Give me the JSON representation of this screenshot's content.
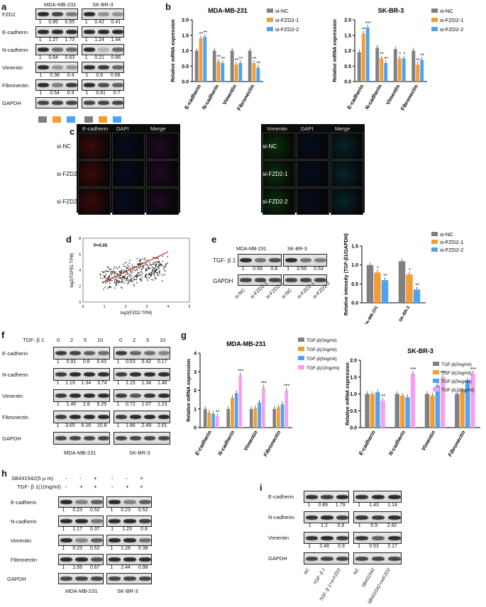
{
  "labels": {
    "a": "a",
    "b": "b",
    "c": "c",
    "d": "d",
    "e": "e",
    "f": "f",
    "g": "g",
    "h": "h",
    "i": "i"
  },
  "panel_a": {
    "cells": [
      "MDA-MB-231",
      "SK-BR-3"
    ],
    "rows": [
      {
        "name": "FZD2",
        "mda": [
          "1",
          "0.85",
          "0.55"
        ],
        "sk": [
          "1",
          "0.42",
          "0.41"
        ]
      },
      {
        "name": "E-cadherin",
        "mda": [
          "1",
          "1.27",
          "1.73"
        ],
        "sk": [
          "1",
          "1.24",
          "1.44"
        ]
      },
      {
        "name": "N-cadherin",
        "mda": [
          "1",
          "0.64",
          "0.63"
        ],
        "sk": [
          "1",
          "0.21",
          "0.66"
        ]
      },
      {
        "name": "Vimentin",
        "mda": [
          "1",
          "0.38",
          "0.4"
        ],
        "sk": [
          "1",
          "0.9",
          "0.66"
        ]
      },
      {
        "name": "Fibronectin",
        "mda": [
          "1",
          "0.54",
          "0.9"
        ],
        "sk": [
          "1",
          "0.81",
          "0.7"
        ]
      },
      {
        "name": "GAPDH",
        "mda": [],
        "sk": []
      }
    ],
    "colors": [
      "#808080",
      "#f39c34",
      "#4da3f2"
    ]
  },
  "legend3": [
    "si-NC",
    "si-FZD2-1",
    "si-FZD2-2"
  ],
  "colors3": [
    "#808080",
    "#f39c34",
    "#4da3f2"
  ],
  "chart_data": [
    {
      "type": "bar",
      "title": "MDA-MB-231",
      "ylabel": "Relative mRNA expression",
      "categories": [
        "E-cadherin",
        "N-cadherin",
        "Vimentin",
        "Fibronectin"
      ],
      "ylim": [
        0,
        2
      ],
      "yticks": [
        "0.0",
        "0.5",
        "1.0",
        "1.5",
        "2.0"
      ],
      "series": [
        {
          "name": "si-NC",
          "values": [
            1,
            1,
            1,
            1
          ]
        },
        {
          "name": "si-FZD2-1",
          "values": [
            1.4,
            0.65,
            0.55,
            0.6
          ]
        },
        {
          "name": "si-FZD2-2",
          "values": [
            1.45,
            0.6,
            0.6,
            0.45
          ]
        }
      ],
      "sig": [
        [
          "",
          "**",
          "**"
        ],
        [
          "",
          "**",
          "**"
        ],
        [
          "",
          "**",
          "**"
        ],
        [
          "",
          "**",
          "**"
        ]
      ]
    },
    {
      "type": "bar",
      "title": "SK-BR-3",
      "ylabel": "Relative mRNA expression",
      "categories": [
        "E-cadherin",
        "N-cadherin",
        "Vimentin",
        "Fibronectin"
      ],
      "ylim": [
        0,
        2
      ],
      "yticks": [
        "0.0",
        "0.5",
        "1.0",
        "1.5",
        "2.0"
      ],
      "series": [
        {
          "name": "si-NC",
          "values": [
            0.95,
            1.1,
            1.05,
            1.0
          ]
        },
        {
          "name": "si-FZD2-1",
          "values": [
            1.55,
            0.75,
            0.75,
            0.55
          ]
        },
        {
          "name": "si-FZD2-2",
          "values": [
            1.75,
            0.6,
            0.75,
            0.7
          ]
        }
      ],
      "sig": [
        [
          "",
          "**",
          "***"
        ],
        [
          "",
          "**",
          "**"
        ],
        [
          "",
          "*",
          "*"
        ],
        [
          "",
          "**",
          "**"
        ]
      ]
    },
    {
      "type": "scatter",
      "annotation": "P<0.05",
      "xlabel": "log2(FZD2 TPM)",
      "ylabel": "log2(TGFB1 TPM)",
      "xticks": [
        "0",
        "1",
        "2",
        "3",
        "4",
        "5"
      ],
      "yticks": [
        "0",
        "2",
        "4",
        "6",
        "8"
      ],
      "xlim": [
        0,
        5
      ],
      "ylim": [
        0,
        8
      ]
    },
    {
      "type": "bar",
      "ylabel": "Relative intensity (TGF-β1/GAPDH)",
      "categories": [
        "MDA-MB-231",
        "SK-BR-3"
      ],
      "ylim": [
        0,
        1.5
      ],
      "yticks": [
        "0.0",
        "0.5",
        "1.0",
        "1.5"
      ],
      "series": [
        {
          "name": "si-NC",
          "values": [
            1.0,
            1.1
          ]
        },
        {
          "name": "si-FZD2-1",
          "values": [
            0.8,
            0.75
          ]
        },
        {
          "name": "si-FZD2-2",
          "values": [
            0.6,
            0.35
          ]
        }
      ],
      "sig": [
        [
          "",
          "*",
          "**"
        ],
        [
          "",
          "*",
          "**"
        ]
      ]
    },
    {
      "type": "bar",
      "title": "MDA-MB-231",
      "ylabel": "Relative mRNA expression",
      "categories": [
        "E-cadherin",
        "N-cadherin",
        "Vimentin",
        "Fibronectin"
      ],
      "ylim": [
        0,
        4
      ],
      "yticks": [
        "0",
        "1",
        "2",
        "3",
        "4"
      ],
      "series": [
        {
          "name": "TGF-β(0ng/ml)",
          "values": [
            1,
            1,
            1,
            1
          ]
        },
        {
          "name": "TGF-β(2ng/ml)",
          "values": [
            0.8,
            1.6,
            1.05,
            1.1
          ]
        },
        {
          "name": "TGF-β(5ng/ml)",
          "values": [
            0.75,
            1.85,
            1.35,
            1.25
          ]
        },
        {
          "name": "TGF-β(10ng/ml)",
          "values": [
            0.6,
            2.8,
            2.15,
            2.0
          ]
        }
      ],
      "sig": [
        [
          "",
          "",
          "",
          "**"
        ],
        [
          "",
          "",
          "",
          "***"
        ],
        [
          "",
          "",
          "",
          "***"
        ],
        [
          "",
          "",
          "",
          "***"
        ]
      ]
    },
    {
      "type": "bar",
      "title": "SK-BR-3",
      "ylabel": "Relative mRNA expression",
      "categories": [
        "E-cadherin",
        "N-cadherin",
        "Vimentin",
        "Fibronectin"
      ],
      "ylim": [
        0,
        2
      ],
      "yticks": [
        "0.0",
        "0.5",
        "1.0",
        "1.5",
        "2.0"
      ],
      "series": [
        {
          "name": "TGF-β(0ng/ml)",
          "values": [
            1,
            1,
            1,
            1
          ]
        },
        {
          "name": "TGF-β(2ng/ml)",
          "values": [
            1.0,
            0.95,
            0.95,
            1.1
          ]
        },
        {
          "name": "TGF-β(5ng/ml)",
          "values": [
            1.05,
            0.9,
            1.25,
            1.4
          ]
        },
        {
          "name": "TGF-β(10ng/ml)",
          "values": [
            0.8,
            1.6,
            1.5,
            1.6
          ]
        }
      ],
      "sig": [
        [
          "",
          "",
          "",
          "**"
        ],
        [
          "",
          "",
          "",
          "***"
        ],
        [
          "",
          "",
          "",
          "***"
        ],
        [
          "",
          "",
          "",
          "***"
        ]
      ]
    }
  ],
  "legend4": [
    "TGF-β(0ng/ml)",
    "TGF-β(2ng/ml)",
    "TGF-β(5ng/ml)",
    "TGF-β(10ng/ml)"
  ],
  "colors4": [
    "#808080",
    "#f39c34",
    "#4da3f2",
    "#f59ff0"
  ],
  "panel_c": {
    "left_cols": [
      "E-cadherin",
      "DAPI",
      "Merge"
    ],
    "right_cols": [
      "Vimentin",
      "DAPI",
      "Merge"
    ],
    "rows": [
      "si-NC",
      "si-FZD2-1",
      "si-FZD2-2"
    ]
  },
  "panel_e": {
    "protein": "TGF- β 1",
    "gapdh": "GAPDH",
    "cells": [
      "MDA-MB-231",
      "SK-BR-3"
    ],
    "mda": [
      "1",
      "0.59",
      "0.8"
    ],
    "sk": [
      "1",
      "0.59",
      "0.53"
    ],
    "lanes": [
      "si-NC",
      "si-FZD2-1",
      "si-FZD2-2",
      "si-NC",
      "si-FZD2-1",
      "si-FZD2-2"
    ]
  },
  "panel_f": {
    "treat": "TGF- β 1",
    "doses": [
      "0",
      "2",
      "5",
      "10",
      "0",
      "2",
      "5",
      "10"
    ],
    "rows": [
      {
        "name": "E-cadherin",
        "mda": [
          "1",
          "0.91",
          "0.6",
          "0.43"
        ],
        "sk": [
          "1",
          "0.53",
          "0.42",
          "0.17"
        ]
      },
      {
        "name": "N-cadherin",
        "mda": [
          "1",
          "1.19",
          "1.34",
          "3.74"
        ],
        "sk": [
          "1",
          "1.15",
          "1.34",
          "1.46"
        ]
      },
      {
        "name": "Vimentin",
        "mda": [
          "1",
          "1.46",
          "2.8",
          "5.29"
        ],
        "sk": [
          "1",
          "0.72",
          "1.07",
          "1.23"
        ]
      },
      {
        "name": "Fibronectin",
        "mda": [
          "1",
          "3.65",
          "6.16",
          "10.8"
        ],
        "sk": [
          "1",
          "1.86",
          "2.49",
          "2.61"
        ]
      },
      {
        "name": "GAPDH",
        "mda": [],
        "sk": []
      }
    ],
    "cells": [
      "MDA-MB-231",
      "SK-BR-3"
    ]
  },
  "panel_h": {
    "sb": "SB431542(5 μ m)",
    "tgf": "TGF- β 1(10ng/ml)",
    "sb_signs": [
      "-",
      "-",
      "+",
      "-",
      "-",
      "+"
    ],
    "tgf_signs": [
      "-",
      "+",
      "+",
      "-",
      "+",
      "+"
    ],
    "rows": [
      {
        "name": "E-cadherin",
        "mda": [
          "1",
          "0.23",
          "0.52"
        ],
        "sk": [
          "1",
          "0.23",
          "0.52"
        ]
      },
      {
        "name": "N-cadherin",
        "mda": [
          "1",
          "1.17",
          "0.37"
        ],
        "sk": [
          "1",
          "1.23",
          "0.8"
        ]
      },
      {
        "name": "Vimentin",
        "mda": [
          "1",
          "0.23",
          "0.52"
        ],
        "sk": [
          "1",
          "1.28",
          "0.38"
        ]
      },
      {
        "name": "Fibronectin",
        "mda": [
          "1",
          "1.69",
          "0.67"
        ],
        "sk": [
          "1",
          "2.44",
          "0.98"
        ]
      },
      {
        "name": "GAPDH",
        "mda": [],
        "sk": []
      }
    ],
    "cells": [
      "MDA-MB-231",
      "SK-BR-3"
    ]
  },
  "panel_i": {
    "rows": [
      {
        "name": "E-cadherin",
        "l": [
          "1",
          "0.89",
          "1.79"
        ],
        "r": [
          "1",
          "1.43",
          "1.14"
        ]
      },
      {
        "name": "N-cadherin",
        "l": [
          "1",
          "1.2",
          "0.9"
        ],
        "r": [
          "1",
          "0.9",
          "2.42"
        ]
      },
      {
        "name": "Vimentin",
        "l": [
          "1",
          "2.48",
          "0.9"
        ],
        "r": [
          "1",
          "0.53",
          "2.17"
        ]
      },
      {
        "name": "GAPDH",
        "l": [],
        "r": []
      }
    ],
    "lanes": [
      "NC",
      "TGF- β 1",
      "TGF- β 1+si-FZD2",
      "NC",
      "SB431542",
      "SB431542+oeFZD2"
    ]
  }
}
